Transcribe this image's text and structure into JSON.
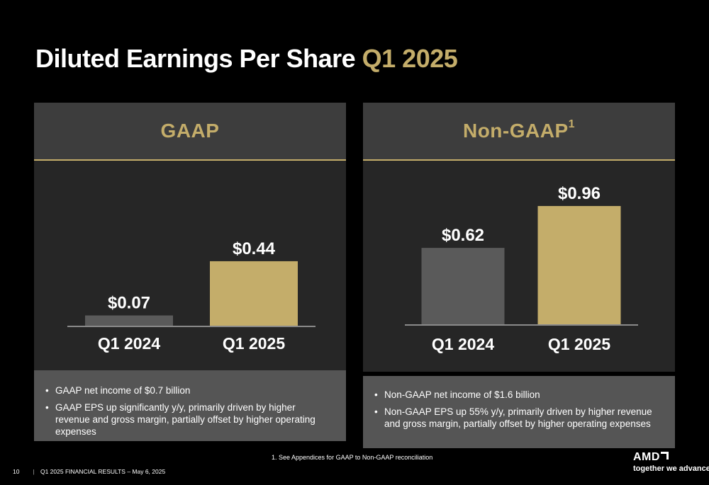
{
  "page": {
    "title_main": "Diluted Earnings Per Share",
    "title_accent": "Q1 2025",
    "footnote": "1. See Appendices for GAAP to Non-GAAP reconciliation",
    "page_number": "10",
    "footer_separator": "|",
    "footer_text": "Q1 2025 FINANCIAL RESULTS – May 6, 2025",
    "brand_logo": "AMD",
    "brand_tagline": "together we advance_",
    "colors": {
      "accent": "#c4ad6a",
      "bar_prior": "#5a5a5a",
      "bar_current": "#c4ad6a",
      "panel_header": "#3d3d3d",
      "panel_body": "#262626",
      "panel_notes": "#555555"
    }
  },
  "panels": [
    {
      "heading": "GAAP",
      "superscript": "",
      "notes": [
        "GAAP net income of $0.7 billion",
        "GAAP EPS up significantly y/y, primarily driven by higher revenue and gross margin, partially offset by higher operating expenses"
      ]
    },
    {
      "heading": "Non-GAAP",
      "superscript": "1",
      "notes": [
        "Non-GAAP net income of $1.6 billion",
        "Non-GAAP EPS up 55% y/y, primarily driven by higher revenue and gross margin, partially offset by higher operating expenses"
      ]
    }
  ],
  "chart_data": [
    {
      "type": "bar",
      "title": "GAAP",
      "categories": [
        "Q1 2024",
        "Q1 2025"
      ],
      "values": [
        0.07,
        0.44
      ],
      "data_labels": [
        "$0.07",
        "$0.44"
      ],
      "ylim": [
        0,
        1.0
      ],
      "grid": false
    },
    {
      "type": "bar",
      "title": "Non-GAAP",
      "categories": [
        "Q1 2024",
        "Q1 2025"
      ],
      "values": [
        0.62,
        0.96
      ],
      "data_labels": [
        "$0.62",
        "$0.96"
      ],
      "ylim": [
        0,
        1.0
      ],
      "grid": false
    }
  ]
}
